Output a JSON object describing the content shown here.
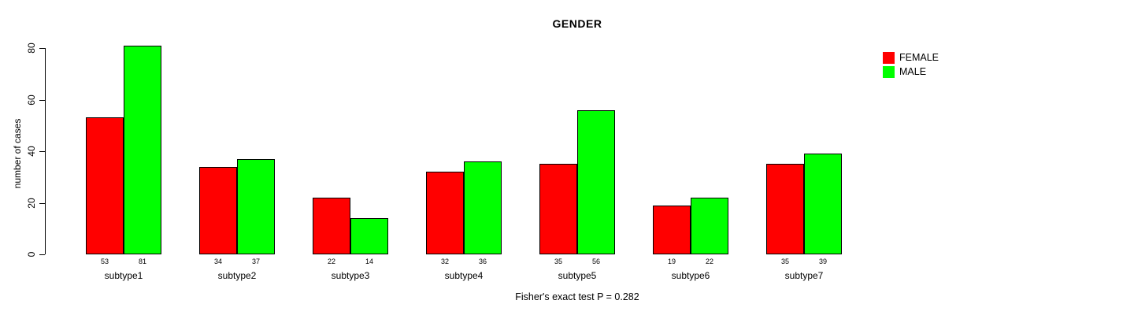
{
  "chart_data": {
    "type": "bar",
    "title": "GENDER",
    "ylabel": "number of cases",
    "xlabel": "",
    "categories": [
      "subtype1",
      "subtype2",
      "subtype3",
      "subtype4",
      "subtype5",
      "subtype6",
      "subtype7"
    ],
    "series": [
      {
        "name": "FEMALE",
        "color": "#ff0000",
        "values": [
          53,
          34,
          22,
          32,
          35,
          19,
          35
        ]
      },
      {
        "name": "MALE",
        "color": "#00ff00",
        "values": [
          81,
          37,
          14,
          36,
          56,
          22,
          39
        ]
      }
    ],
    "yticks": [
      0,
      20,
      40,
      60,
      80
    ],
    "ylim": [
      0,
      80
    ],
    "bar_value_labels_shown": true,
    "grid": false,
    "legend_position": "top-right",
    "caption": "Fisher's exact test P = 0.282",
    "colors": {
      "female": "#ff0000",
      "male": "#00ff00",
      "axis": "#000000",
      "background": "#ffffff"
    }
  }
}
